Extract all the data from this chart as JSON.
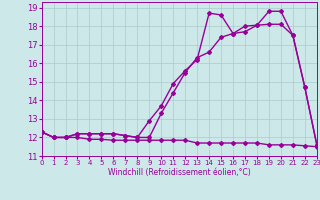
{
  "bg_color": "#cce8e8",
  "line_color": "#990099",
  "grid_color": "#aacccc",
  "xlabel": "Windchill (Refroidissement éolien,°C)",
  "xlim": [
    0,
    23
  ],
  "ylim": [
    11,
    19.3
  ],
  "yticks": [
    11,
    12,
    13,
    14,
    15,
    16,
    17,
    18,
    19
  ],
  "xticks": [
    0,
    1,
    2,
    3,
    4,
    5,
    6,
    7,
    8,
    9,
    10,
    11,
    12,
    13,
    14,
    15,
    16,
    17,
    18,
    19,
    20,
    21,
    22,
    23
  ],
  "series1_x": [
    0,
    1,
    2,
    3,
    4,
    5,
    6,
    7,
    8,
    9,
    10,
    11,
    12,
    13,
    14,
    15,
    16,
    17,
    18,
    19,
    20,
    21,
    22,
    23
  ],
  "series1_y": [
    12.3,
    12.0,
    12.0,
    12.0,
    11.9,
    11.9,
    11.85,
    11.85,
    11.85,
    11.85,
    11.85,
    11.85,
    11.85,
    11.7,
    11.7,
    11.7,
    11.7,
    11.7,
    11.7,
    11.6,
    11.6,
    11.6,
    11.55,
    11.5
  ],
  "series2_x": [
    0,
    1,
    2,
    3,
    4,
    5,
    6,
    7,
    8,
    9,
    10,
    11,
    12,
    13,
    14,
    15,
    16,
    17,
    18,
    19,
    20,
    21,
    22,
    23
  ],
  "series2_y": [
    12.3,
    12.0,
    12.0,
    12.2,
    12.2,
    12.2,
    12.2,
    12.1,
    12.0,
    12.0,
    13.3,
    14.4,
    15.5,
    16.3,
    16.6,
    17.4,
    17.6,
    18.0,
    18.05,
    18.1,
    18.1,
    17.5,
    14.7,
    11.6
  ],
  "series3_x": [
    0,
    1,
    2,
    3,
    4,
    5,
    6,
    7,
    8,
    9,
    10,
    11,
    12,
    13,
    14,
    15,
    16,
    17,
    18,
    19,
    20,
    21,
    22,
    23
  ],
  "series3_y": [
    12.3,
    12.0,
    12.0,
    12.2,
    12.2,
    12.2,
    12.2,
    12.1,
    12.0,
    12.9,
    13.7,
    14.9,
    15.6,
    16.2,
    18.7,
    18.6,
    17.6,
    17.7,
    18.05,
    18.8,
    18.8,
    17.5,
    14.7,
    11.6
  ],
  "marker": "D",
  "markersize": 2.0,
  "linewidth": 1.0
}
